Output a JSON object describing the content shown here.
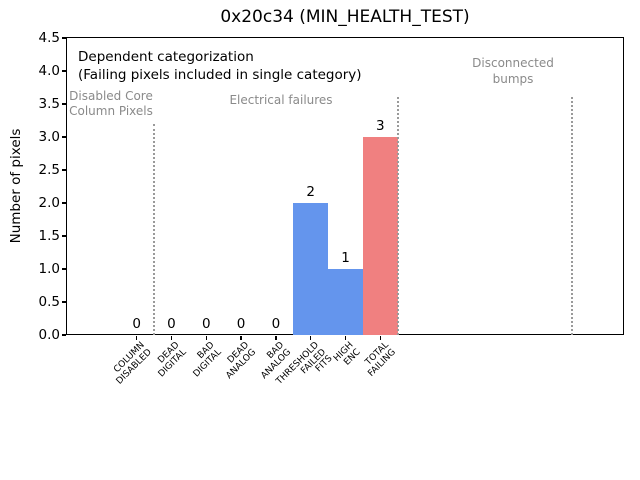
{
  "chart_data": {
    "type": "bar",
    "title": "0x20c34 (MIN_HEALTH_TEST)",
    "ylabel": "Number of pixels",
    "xlabel": "",
    "ylim": [
      0,
      4.5
    ],
    "ytick_step": 0.5,
    "xlim": [
      -2,
      14
    ],
    "grid": false,
    "legend": null,
    "categories": [
      "COLUMN\nDISABLED",
      "DEAD\nDIGITAL",
      "BAD\nDIGITAL",
      "DEAD\nANALOG",
      "BAD\nANALOG",
      "THRESHOLD\nFAILED\nFITS",
      "HIGH\nENC",
      "TOTAL\nFAILING"
    ],
    "values": [
      0,
      0,
      0,
      0,
      0,
      2,
      1,
      3
    ],
    "bar_value_labels": [
      "0",
      "0",
      "0",
      "0",
      "0",
      "2",
      "1",
      "3"
    ],
    "bar_colors": [
      "#6495ed",
      "#6495ed",
      "#6495ed",
      "#6495ed",
      "#6495ed",
      "#6495ed",
      "#6495ed",
      "#f08080"
    ],
    "separators": [
      {
        "x": 0.5,
        "ymax": 3.2
      },
      {
        "x": 7.5,
        "ymax": 3.6
      },
      {
        "x": 12.5,
        "ymax": 3.6
      }
    ],
    "annotations": {
      "dependent_line1": "Dependent categorization",
      "dependent_line2": "(Failing pixels included in single category)",
      "section_disabled_core": "Disabled Core\nColumn Pixels",
      "section_electrical": "Electrical failures",
      "section_disconnected": "Disconnected\nbumps"
    },
    "colors": {
      "bar_blue": "#6495ed",
      "bar_red": "#f08080",
      "annotation_gray": "#8a8a8a",
      "separator_gray": "#9a9a9a",
      "axis": "#000000",
      "background": "#ffffff"
    }
  }
}
